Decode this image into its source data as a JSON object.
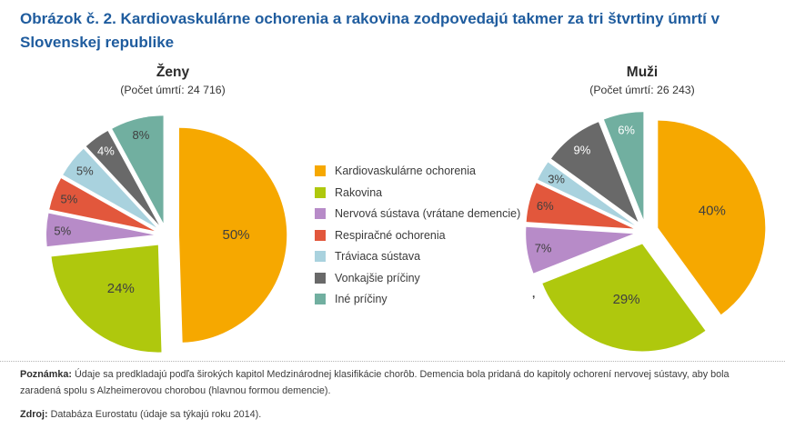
{
  "title": "Obrázok č. 2. Kardiovaskulárne ochorenia a rakovina zodpovedajú takmer za tri štvrtiny úmrtí v Slovenskej republike",
  "legend": {
    "items": [
      {
        "label": "Kardiovaskulárne ochorenia",
        "color": "#F6A800"
      },
      {
        "label": "Rakovina",
        "color": "#AFC80D"
      },
      {
        "label": "Nervová sústava (vrátane demencie)",
        "color": "#B78BC8"
      },
      {
        "label": "Respiračné ochorenia",
        "color": "#E2573C"
      },
      {
        "label": "Tráviaca sústava",
        "color": "#A9D2DE"
      },
      {
        "label": "Vonkajšie príčiny",
        "color": "#696969"
      },
      {
        "label": "Iné príčiny",
        "color": "#71AFA0"
      }
    ]
  },
  "chart_data": [
    {
      "type": "pie",
      "title": "Ženy",
      "subtitle": "(Počet úmrtí: 24 716)",
      "categories": [
        "Kardiovaskulárne ochorenia",
        "Rakovina",
        "Nervová sústava (vrátane demencie)",
        "Respiračné ochorenia",
        "Tráviaca sústava",
        "Vonkajšie príčiny",
        "Iné príčiny"
      ],
      "values_pct": [
        50,
        24,
        5,
        5,
        5,
        4,
        8
      ],
      "percent_labels": [
        "50%",
        "24%",
        "5%",
        "5%",
        "5%",
        "4%",
        "8%"
      ],
      "colors": [
        "#F6A800",
        "#AFC80D",
        "#B78BC8",
        "#E2573C",
        "#A9D2DE",
        "#696969",
        "#71AFA0"
      ],
      "label_colors": [
        "dark",
        "dark",
        "dark",
        "dark",
        "dark",
        "white",
        "dark"
      ],
      "start_angle_deg": 0,
      "direction": "clockwise",
      "exploded": true,
      "legend_position": "center-between-pies"
    },
    {
      "type": "pie",
      "title": "Muži",
      "subtitle": "(Počet úmrtí: 26 243)",
      "categories": [
        "Kardiovaskulárne ochorenia",
        "Rakovina",
        "Nervová sústava (vrátane demencie)",
        "Respiračné ochorenia",
        "Tráviaca sústava",
        "Vonkajšie príčiny",
        "Iné príčiny"
      ],
      "values_pct": [
        40,
        29,
        7,
        6,
        3,
        9,
        6
      ],
      "percent_labels": [
        "40%",
        "29%",
        "7%",
        "6%",
        "3%",
        "9%",
        "6%"
      ],
      "colors": [
        "#F6A800",
        "#AFC80D",
        "#B78BC8",
        "#E2573C",
        "#A9D2DE",
        "#696969",
        "#71AFA0"
      ],
      "label_colors": [
        "dark",
        "dark",
        "dark",
        "dark",
        "dark",
        "white",
        "white"
      ],
      "start_angle_deg": 0,
      "direction": "clockwise",
      "exploded": true,
      "legend_position": "center-between-pies"
    }
  ],
  "footnote": {
    "label": "Poznámka:",
    "text": " Údaje sa predkladajú podľa širokých kapitol Medzinárodnej klasifikácie chorôb. Demencia bola pridaná do kapitoly ochorení nervovej sústavy, aby bola zaradená spolu s Alzheimerovou chorobou (hlavnou formou demencie)."
  },
  "source": {
    "label": "Zdroj:",
    "text": " Databáza Eurostatu (údaje sa týkajú roku 2014)."
  },
  "stray_mark": ",",
  "accent_colors": {
    "title_blue": "#1F5C9E",
    "slice_label_dark": "#3F3F3F",
    "slice_label_white": "#FFFFFF"
  }
}
